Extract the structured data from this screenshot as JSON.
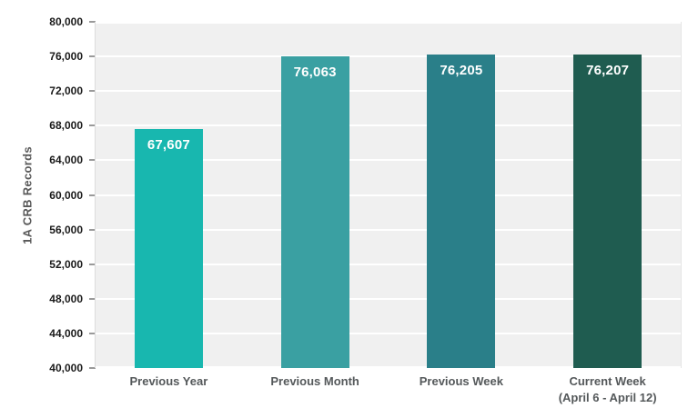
{
  "chart_data": {
    "type": "bar",
    "title": "",
    "xlabel": "",
    "ylabel": "1A CRB Records",
    "categories": [
      "Previous Year",
      "Previous Month",
      "Previous Week",
      "Current Week\n(April 6 - April 12)"
    ],
    "values": [
      67607,
      76063,
      76205,
      76207
    ],
    "value_labels": [
      "67,607",
      "76,063",
      "76,205",
      "76,207"
    ],
    "bar_colors": [
      "#18b7af",
      "#3aa0a2",
      "#2a7f89",
      "#1f5c50"
    ],
    "ylim": [
      40000,
      80000
    ],
    "ytick_step": 4000,
    "ytick_labels": [
      "40,000",
      "44,000",
      "48,000",
      "52,000",
      "56,000",
      "60,000",
      "64,000",
      "68,000",
      "72,000",
      "76,000",
      "80,000"
    ],
    "grid": true,
    "legend": false,
    "layout": "grouped vertical bars on light gray plot background with white horizontal gridlines; value labels in white inside bar tops; y-axis title rotated on left"
  },
  "colors": {
    "plot_bg": "#f0f0f0",
    "grid_color": "#ffffff",
    "tick_label_color": "#1a1a1a",
    "tick_mark_color": "#9a9a9a",
    "y_title_color": "#595959",
    "x_label_color": "#54585a",
    "value_label_color": "#ffffff",
    "page_bg": "#ffffff"
  }
}
